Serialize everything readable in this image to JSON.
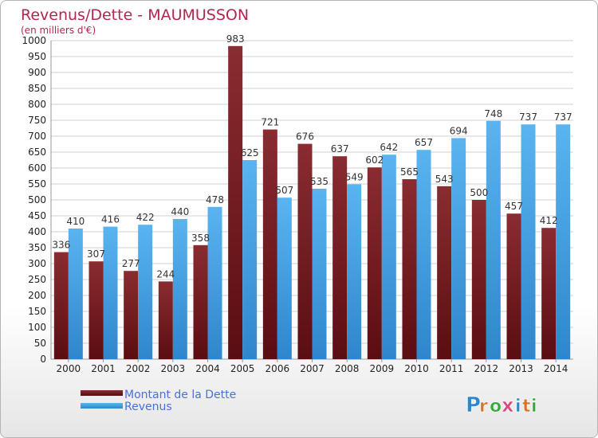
{
  "chart_data": {
    "type": "bar",
    "title": "Revenus/Dette - MAUMUSSON",
    "subtitle": "(en milliers d'€)",
    "categories": [
      "2000",
      "2001",
      "2002",
      "2003",
      "2004",
      "2005",
      "2006",
      "2007",
      "2008",
      "2009",
      "2010",
      "2011",
      "2012",
      "2013",
      "2014"
    ],
    "series": [
      {
        "name": "Montant de la Dette",
        "color": "#7a1f24",
        "values": [
          336,
          307,
          277,
          244,
          358,
          983,
          721,
          676,
          637,
          602,
          565,
          543,
          500,
          457,
          412
        ]
      },
      {
        "name": "Revenus",
        "color": "#4da6e6",
        "values": [
          410,
          416,
          422,
          440,
          478,
          625,
          507,
          535,
          549,
          642,
          657,
          694,
          748,
          737,
          737
        ]
      }
    ],
    "ylim": [
      0,
      1000
    ],
    "yticks": [
      0,
      50,
      100,
      150,
      200,
      250,
      300,
      350,
      400,
      450,
      500,
      550,
      600,
      650,
      700,
      750,
      800,
      850,
      900,
      950,
      1000
    ],
    "grid": true,
    "legend_position": "bottom-left"
  },
  "logo": {
    "text": "Proxiti",
    "letters": [
      "P",
      "r",
      "o",
      "x",
      "i",
      "t",
      "i"
    ],
    "letter_colors": [
      "#2e86c8",
      "#d9731f",
      "#3aa53a",
      "#d94a7c",
      "#2e86c8",
      "#d9731f",
      "#3aa53a"
    ]
  }
}
